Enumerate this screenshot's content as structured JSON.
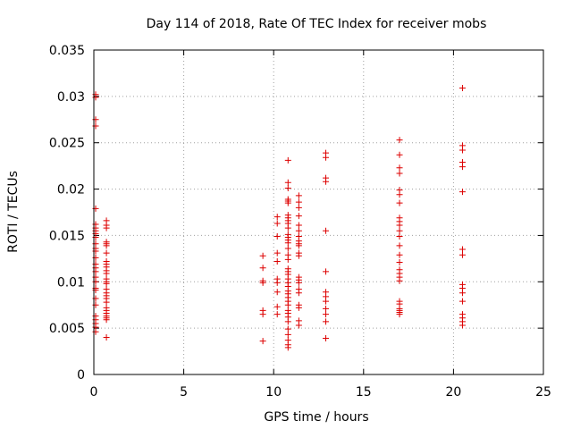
{
  "chart_data": {
    "type": "scatter",
    "title": "Day 114 of 2018, Rate Of TEC Index for receiver mobs",
    "xlabel": "GPS time / hours",
    "ylabel": "ROTI / TECUs",
    "xlim": [
      0,
      25
    ],
    "ylim": [
      0,
      0.035
    ],
    "xticks": [
      0,
      5,
      10,
      15,
      20,
      25
    ],
    "xtick_labels": [
      "0",
      "5",
      "10",
      "15",
      "20",
      "25"
    ],
    "yticks": [
      0,
      0.005,
      0.01,
      0.015,
      0.02,
      0.025,
      0.03,
      0.035
    ],
    "ytick_labels": [
      "0",
      "0.005",
      "0.01",
      "0.015",
      "0.02",
      "0.025",
      "0.03",
      "0.035"
    ],
    "grid": true,
    "marker": "+",
    "color": "#dd0000",
    "series": [
      {
        "name": "ROTI",
        "points": [
          [
            0.1,
            0.0302
          ],
          [
            0.1,
            0.0299
          ],
          [
            0.1,
            0.0275
          ],
          [
            0.1,
            0.0268
          ],
          [
            0.1,
            0.0179
          ],
          [
            0.1,
            0.0162
          ],
          [
            0.1,
            0.0158
          ],
          [
            0.1,
            0.0155
          ],
          [
            0.1,
            0.0152
          ],
          [
            0.1,
            0.0148
          ],
          [
            0.1,
            0.0141
          ],
          [
            0.1,
            0.0136
          ],
          [
            0.1,
            0.0133
          ],
          [
            0.1,
            0.0126
          ],
          [
            0.1,
            0.0119
          ],
          [
            0.1,
            0.0115
          ],
          [
            0.1,
            0.0111
          ],
          [
            0.1,
            0.0105
          ],
          [
            0.1,
            0.01
          ],
          [
            0.1,
            0.0093
          ],
          [
            0.1,
            0.0091
          ],
          [
            0.1,
            0.0082
          ],
          [
            0.1,
            0.0075
          ],
          [
            0.1,
            0.0063
          ],
          [
            0.1,
            0.0059
          ],
          [
            0.1,
            0.0055
          ],
          [
            0.1,
            0.0051
          ],
          [
            0.1,
            0.0046
          ],
          [
            0.7,
            0.0166
          ],
          [
            0.7,
            0.0161
          ],
          [
            0.7,
            0.0158
          ],
          [
            0.7,
            0.0143
          ],
          [
            0.7,
            0.0141
          ],
          [
            0.7,
            0.0139
          ],
          [
            0.7,
            0.0131
          ],
          [
            0.7,
            0.0122
          ],
          [
            0.7,
            0.0119
          ],
          [
            0.7,
            0.0116
          ],
          [
            0.7,
            0.0112
          ],
          [
            0.7,
            0.0109
          ],
          [
            0.7,
            0.0103
          ],
          [
            0.7,
            0.01
          ],
          [
            0.7,
            0.0098
          ],
          [
            0.7,
            0.0092
          ],
          [
            0.7,
            0.0088
          ],
          [
            0.7,
            0.0085
          ],
          [
            0.7,
            0.0082
          ],
          [
            0.7,
            0.0078
          ],
          [
            0.7,
            0.0072
          ],
          [
            0.7,
            0.0069
          ],
          [
            0.7,
            0.0066
          ],
          [
            0.7,
            0.0063
          ],
          [
            0.7,
            0.0061
          ],
          [
            0.7,
            0.0059
          ],
          [
            0.7,
            0.004
          ],
          [
            9.4,
            0.0128
          ],
          [
            9.4,
            0.0115
          ],
          [
            9.4,
            0.0101
          ],
          [
            9.4,
            0.0099
          ],
          [
            9.4,
            0.0069
          ],
          [
            9.4,
            0.0065
          ],
          [
            9.4,
            0.0036
          ],
          [
            10.2,
            0.017
          ],
          [
            10.2,
            0.0163
          ],
          [
            10.2,
            0.0149
          ],
          [
            10.2,
            0.0131
          ],
          [
            10.2,
            0.0122
          ],
          [
            10.2,
            0.0103
          ],
          [
            10.2,
            0.0099
          ],
          [
            10.2,
            0.0089
          ],
          [
            10.2,
            0.0073
          ],
          [
            10.2,
            0.0065
          ],
          [
            10.8,
            0.0231
          ],
          [
            10.8,
            0.0207
          ],
          [
            10.8,
            0.0201
          ],
          [
            10.8,
            0.0189
          ],
          [
            10.8,
            0.0187
          ],
          [
            10.8,
            0.0185
          ],
          [
            10.8,
            0.0172
          ],
          [
            10.8,
            0.0169
          ],
          [
            10.8,
            0.0166
          ],
          [
            10.8,
            0.0163
          ],
          [
            10.8,
            0.0158
          ],
          [
            10.8,
            0.0151
          ],
          [
            10.8,
            0.0148
          ],
          [
            10.8,
            0.0145
          ],
          [
            10.8,
            0.0142
          ],
          [
            10.8,
            0.0136
          ],
          [
            10.8,
            0.0129
          ],
          [
            10.8,
            0.0124
          ],
          [
            10.8,
            0.0114
          ],
          [
            10.8,
            0.0111
          ],
          [
            10.8,
            0.0108
          ],
          [
            10.8,
            0.0103
          ],
          [
            10.8,
            0.0099
          ],
          [
            10.8,
            0.0095
          ],
          [
            10.8,
            0.009
          ],
          [
            10.8,
            0.0087
          ],
          [
            10.8,
            0.0083
          ],
          [
            10.8,
            0.0079
          ],
          [
            10.8,
            0.0075
          ],
          [
            10.8,
            0.0069
          ],
          [
            10.8,
            0.0066
          ],
          [
            10.8,
            0.0062
          ],
          [
            10.8,
            0.0057
          ],
          [
            10.8,
            0.0049
          ],
          [
            10.8,
            0.0043
          ],
          [
            10.8,
            0.0037
          ],
          [
            10.8,
            0.0032
          ],
          [
            10.8,
            0.0029
          ],
          [
            11.4,
            0.0193
          ],
          [
            11.4,
            0.0186
          ],
          [
            11.4,
            0.018
          ],
          [
            11.4,
            0.0171
          ],
          [
            11.4,
            0.0161
          ],
          [
            11.4,
            0.0155
          ],
          [
            11.4,
            0.0149
          ],
          [
            11.4,
            0.0144
          ],
          [
            11.4,
            0.0141
          ],
          [
            11.4,
            0.0139
          ],
          [
            11.4,
            0.0131
          ],
          [
            11.4,
            0.0128
          ],
          [
            11.4,
            0.0105
          ],
          [
            11.4,
            0.0102
          ],
          [
            11.4,
            0.0099
          ],
          [
            11.4,
            0.0092
          ],
          [
            11.4,
            0.0088
          ],
          [
            11.4,
            0.0075
          ],
          [
            11.4,
            0.0072
          ],
          [
            11.4,
            0.0058
          ],
          [
            11.4,
            0.0053
          ],
          [
            12.9,
            0.0239
          ],
          [
            12.9,
            0.0234
          ],
          [
            12.9,
            0.0212
          ],
          [
            12.9,
            0.0208
          ],
          [
            12.9,
            0.0155
          ],
          [
            12.9,
            0.0111
          ],
          [
            12.9,
            0.0089
          ],
          [
            12.9,
            0.0084
          ],
          [
            12.9,
            0.0079
          ],
          [
            12.9,
            0.0071
          ],
          [
            12.9,
            0.0065
          ],
          [
            12.9,
            0.0057
          ],
          [
            12.9,
            0.0039
          ],
          [
            17.0,
            0.0253
          ],
          [
            17.0,
            0.0237
          ],
          [
            17.0,
            0.0223
          ],
          [
            17.0,
            0.0217
          ],
          [
            17.0,
            0.0199
          ],
          [
            17.0,
            0.0194
          ],
          [
            17.0,
            0.0185
          ],
          [
            17.0,
            0.0169
          ],
          [
            17.0,
            0.0165
          ],
          [
            17.0,
            0.0161
          ],
          [
            17.0,
            0.0155
          ],
          [
            17.0,
            0.0149
          ],
          [
            17.0,
            0.0139
          ],
          [
            17.0,
            0.0129
          ],
          [
            17.0,
            0.0121
          ],
          [
            17.0,
            0.0113
          ],
          [
            17.0,
            0.0109
          ],
          [
            17.0,
            0.0105
          ],
          [
            17.0,
            0.0101
          ],
          [
            17.0,
            0.0079
          ],
          [
            17.0,
            0.0076
          ],
          [
            17.0,
            0.0071
          ],
          [
            17.0,
            0.0069
          ],
          [
            17.0,
            0.0067
          ],
          [
            17.0,
            0.0065
          ],
          [
            20.5,
            0.0309
          ],
          [
            20.5,
            0.0247
          ],
          [
            20.5,
            0.0242
          ],
          [
            20.5,
            0.0229
          ],
          [
            20.5,
            0.0224
          ],
          [
            20.5,
            0.0197
          ],
          [
            20.5,
            0.0135
          ],
          [
            20.5,
            0.0129
          ],
          [
            20.5,
            0.0097
          ],
          [
            20.5,
            0.0093
          ],
          [
            20.5,
            0.0088
          ],
          [
            20.5,
            0.0079
          ],
          [
            20.5,
            0.0065
          ],
          [
            20.5,
            0.0061
          ],
          [
            20.5,
            0.0057
          ],
          [
            20.5,
            0.0053
          ]
        ]
      }
    ]
  }
}
